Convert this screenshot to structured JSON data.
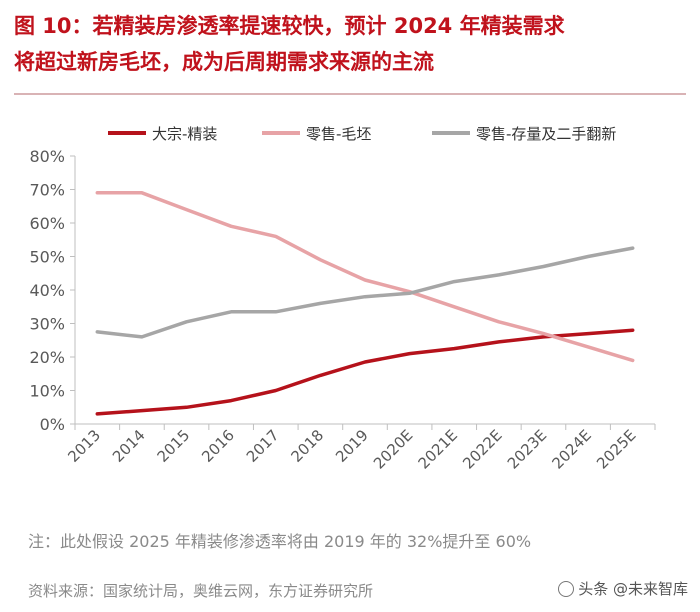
{
  "title_line1": "图 10：若精装房渗透率提速较快，预计 2024 年精装需求",
  "title_line2": "将超过新房毛坯，成为后周期需求来源的主流",
  "note": "注：此处假设 2025 年精装修渗透率将由 2019 年的 32%提升至 60%",
  "source": "资料来源：国家统计局，奥维云网，东方证券研究所",
  "watermark": "头条 @未来智库",
  "colors": {
    "title": "#c0121c",
    "series1": "#b5121b",
    "series2": "#e7a3a6",
    "series3": "#a6a6a6"
  },
  "chart_data": {
    "type": "line",
    "categories": [
      "2013",
      "2014",
      "2015",
      "2016",
      "2017",
      "2018",
      "2019",
      "2020E",
      "2021E",
      "2022E",
      "2023E",
      "2024E",
      "2025E"
    ],
    "series": [
      {
        "name": "大宗-精装",
        "values": [
          3,
          4,
          5,
          7,
          10,
          14.5,
          18.5,
          21,
          22.5,
          24.5,
          26,
          27,
          28
        ]
      },
      {
        "name": "零售-毛坯",
        "values": [
          69,
          69,
          64,
          59,
          56,
          49,
          43,
          39.5,
          35,
          30.5,
          27,
          23,
          19
        ]
      },
      {
        "name": "零售-存量及二手翻新",
        "values": [
          27.5,
          26,
          30.5,
          33.5,
          33.5,
          36,
          38,
          39,
          42.5,
          44.5,
          47,
          50,
          52.5
        ]
      }
    ],
    "yticks": [
      "0%",
      "10%",
      "20%",
      "30%",
      "40%",
      "50%",
      "60%",
      "70%",
      "80%"
    ],
    "ylim": [
      0,
      80
    ],
    "title": "",
    "xlabel": "",
    "ylabel": ""
  }
}
